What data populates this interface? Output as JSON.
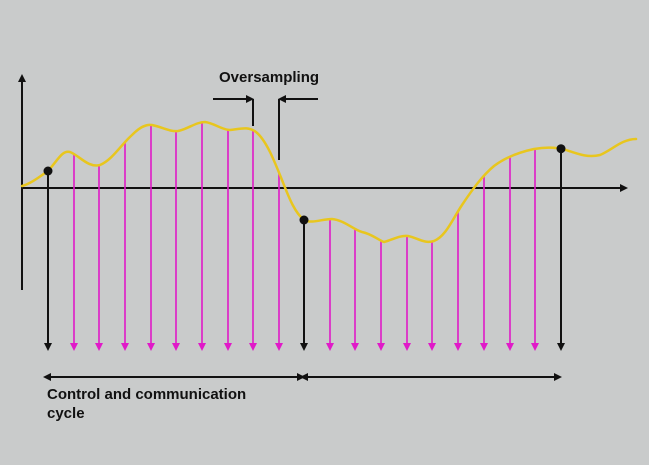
{
  "labels": {
    "oversampling": "Oversampling",
    "cycle": "Control and communication cycle"
  },
  "colors": {
    "background": "#c9cbcb",
    "signal": "#e8c61e",
    "sample_arrow": "#e01ac8",
    "axis": "#111111"
  }
}
